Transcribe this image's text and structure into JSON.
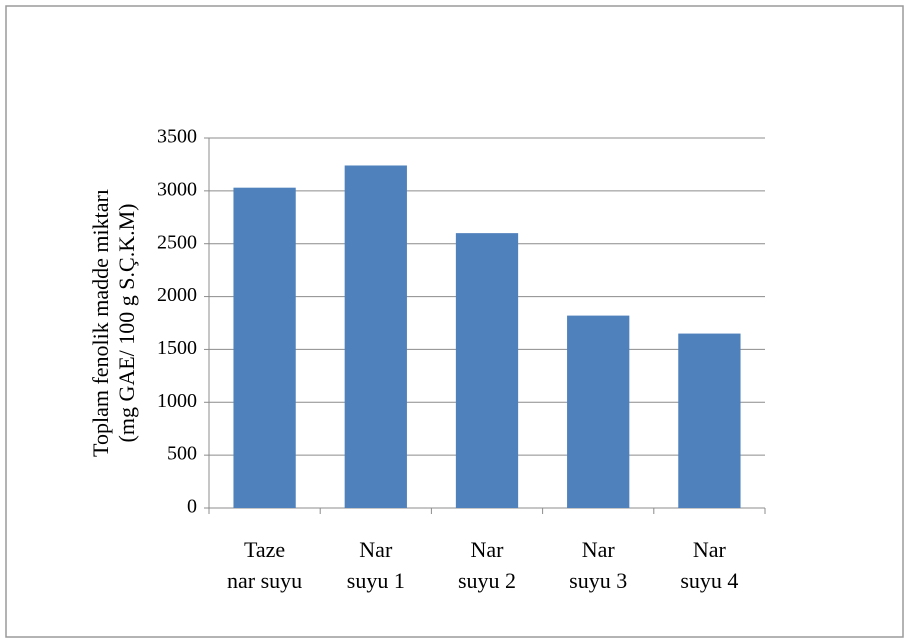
{
  "chart_data": {
    "type": "bar",
    "y_label": [
      "Toplam fenolik madde miktarı",
      "(mg GAE/ 100 g S.Ç.K.M)"
    ],
    "categories": [
      [
        "Taze",
        "nar suyu"
      ],
      [
        "Nar",
        "suyu 1"
      ],
      [
        "Nar",
        "suyu 2"
      ],
      [
        "Nar",
        "suyu 3"
      ],
      [
        "Nar",
        "suyu 4"
      ]
    ],
    "values": [
      3030,
      3240,
      2600,
      1820,
      1650
    ],
    "color": "#4f81bd",
    "ylim": [
      0,
      3500
    ],
    "yticks": [
      0,
      500,
      1000,
      1500,
      2000,
      2500,
      3000,
      3500
    ],
    "grid": true
  }
}
